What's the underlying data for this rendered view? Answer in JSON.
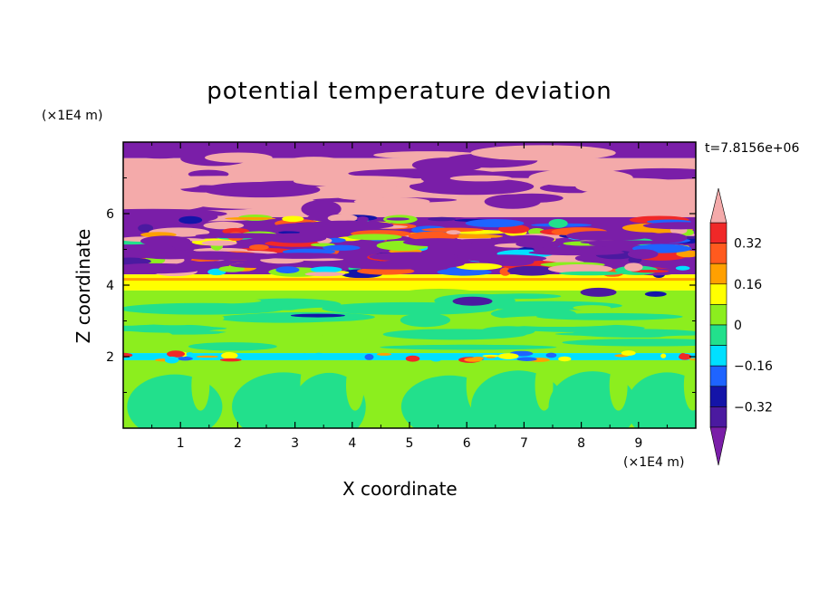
{
  "chart_data": {
    "type": "heatmap",
    "title": "potential temperature deviation",
    "xlabel": "X coordinate",
    "ylabel": "Z coordinate",
    "x_unit": "(×1E4 m)",
    "z_unit": "(×1E4 m)",
    "time_label": "t=7.8156e+06",
    "xlim": [
      0,
      10
    ],
    "zlim": [
      0,
      8
    ],
    "x_ticks": [
      "1",
      "2",
      "3",
      "4",
      "5",
      "6",
      "7",
      "8",
      "9"
    ],
    "z_ticks": [
      "2",
      "4",
      "6"
    ],
    "colorbar": {
      "levels": [
        {
          "color": "#7a1ea8"
        },
        {
          "color": "#4b1aa0"
        },
        {
          "color": "#1414a8"
        },
        {
          "color": "#1e64ff"
        },
        {
          "color": "#00e0ff"
        },
        {
          "color": "#22e08c"
        },
        {
          "color": "#8cee1e"
        },
        {
          "color": "#ffff00"
        },
        {
          "color": "#ffa000"
        },
        {
          "color": "#ff5a1e"
        },
        {
          "color": "#f02828"
        },
        {
          "color": "#f4aaaa"
        }
      ],
      "labels": [
        "0.32",
        "0.16",
        "0",
        "−0.16",
        "−0.32"
      ]
    },
    "layers": [
      {
        "z_top": 8.0,
        "z_bottom": 7.55,
        "dominant": "#7a1ea8"
      },
      {
        "z_top": 7.55,
        "z_bottom": 5.9,
        "dominant": "#f4aaaa"
      },
      {
        "z_top": 5.9,
        "z_bottom": 4.3,
        "dominant": "#7a1ea8"
      },
      {
        "z_top": 4.3,
        "z_bottom": 3.85,
        "dominant": "#ffff00"
      },
      {
        "z_top": 3.85,
        "z_bottom": 2.1,
        "dominant": "#8cee1e"
      },
      {
        "z_top": 2.1,
        "z_bottom": 1.9,
        "dominant": "#00e0ff"
      },
      {
        "z_top": 1.9,
        "z_bottom": 0.0,
        "dominant": "#8cee1e"
      }
    ]
  }
}
